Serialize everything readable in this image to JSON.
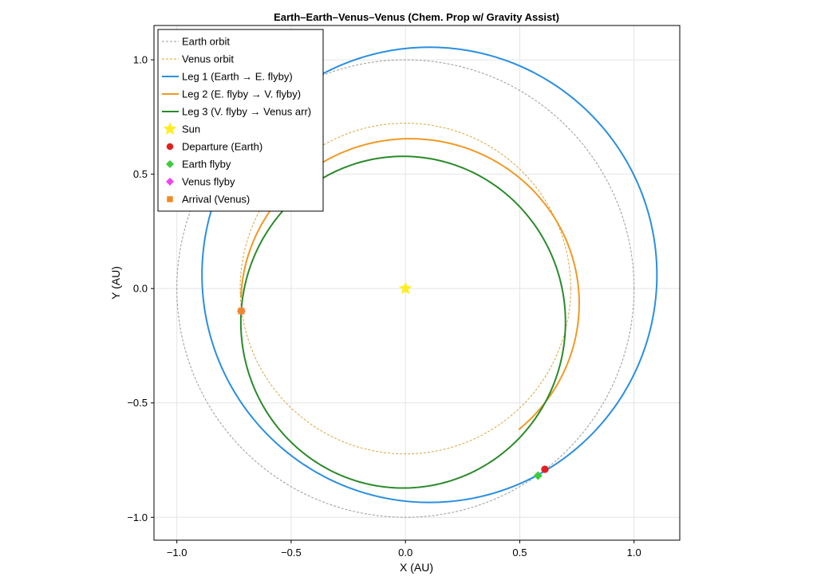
{
  "chart_data": {
    "type": "line",
    "title": "Earth–Earth–Venus–Venus  (Chem. Prop w/ Gravity Assist)",
    "xlabel": "X  (AU)",
    "ylabel": "Y  (AU)",
    "xlim": [
      -1.1,
      1.2
    ],
    "ylim": [
      -1.1,
      1.15
    ],
    "xticks": [
      -1.0,
      -0.5,
      0.0,
      0.5,
      1.0
    ],
    "xtick_labels": [
      "−1.0",
      "−0.5",
      "0.0",
      "0.5",
      "1.0"
    ],
    "yticks": [
      -1.0,
      -0.5,
      0.0,
      0.5,
      1.0
    ],
    "ytick_labels": [
      "−1.0",
      "−0.5",
      "0.0",
      "0.5",
      "1.0"
    ],
    "grid": true,
    "legend_position": "top-left",
    "series": [
      {
        "name": "Earth orbit",
        "kind": "circle",
        "cx": 0.0,
        "cy": 0.0,
        "r": 1.0,
        "color": "#9a9a9a",
        "dashed": true
      },
      {
        "name": "Venus orbit",
        "kind": "circle",
        "cx": 0.0,
        "cy": 0.0,
        "r": 0.723,
        "color": "#d9a63c",
        "dashed": true
      },
      {
        "name": "Leg 1  (Earth → E. flyby)",
        "kind": "ellipse",
        "cx": 0.105,
        "cy": 0.06,
        "rx": 0.995,
        "ry": 0.995,
        "color": "#2b8ee0",
        "from_deg": 0,
        "to_deg": 360
      },
      {
        "name": "Leg 2  (E. flyby → V. flyby)",
        "kind": "ellipse",
        "cx": 0.02,
        "cy": -0.065,
        "rx": 0.74,
        "ry": 0.72,
        "color": "#ee9a24",
        "from_deg": -50,
        "to_deg": 178
      },
      {
        "name": "Leg 3  (V. flyby → Venus arr)",
        "kind": "ellipse",
        "cx": -0.01,
        "cy": -0.147,
        "rx": 0.71,
        "ry": 0.725,
        "color": "#2a8a2a",
        "from_deg": 0,
        "to_deg": 360
      }
    ],
    "markers": [
      {
        "name": "Sun",
        "x": 0.0,
        "y": 0.0,
        "shape": "star",
        "color": "#ffee22"
      },
      {
        "name": "Departure (Earth)",
        "x": 0.61,
        "y": -0.79,
        "shape": "circle",
        "color": "#e02020"
      },
      {
        "name": "Earth flyby",
        "x": 0.58,
        "y": -0.818,
        "shape": "diamond",
        "color": "#3ecb3e"
      },
      {
        "name": "Venus flyby",
        "x": -0.718,
        "y": -0.098,
        "shape": "diamond",
        "color": "#ee44ee"
      },
      {
        "name": "Arrival (Venus)",
        "x": -0.718,
        "y": -0.098,
        "shape": "square",
        "color": "#f08a24"
      }
    ],
    "legend": [
      {
        "label": "Earth orbit",
        "symbol": "dash",
        "color": "#9a9a9a"
      },
      {
        "label": "Venus orbit",
        "symbol": "dash",
        "color": "#d9a63c"
      },
      {
        "label": "Leg 1  (Earth → E. flyby)",
        "symbol": "line",
        "color": "#2b8ee0"
      },
      {
        "label": "Leg 2  (E. flyby → V. flyby)",
        "symbol": "line",
        "color": "#ee9a24"
      },
      {
        "label": "Leg 3  (V. flyby → Venus arr)",
        "symbol": "line",
        "color": "#2a8a2a"
      },
      {
        "label": "Sun",
        "symbol": "star",
        "color": "#ffee22"
      },
      {
        "label": "Departure (Earth)",
        "symbol": "circle",
        "color": "#e02020"
      },
      {
        "label": "Earth flyby",
        "symbol": "diamond",
        "color": "#3ecb3e"
      },
      {
        "label": "Venus flyby",
        "symbol": "diamond",
        "color": "#ee44ee"
      },
      {
        "label": "Arrival (Venus)",
        "symbol": "square",
        "color": "#f08a24"
      }
    ]
  }
}
